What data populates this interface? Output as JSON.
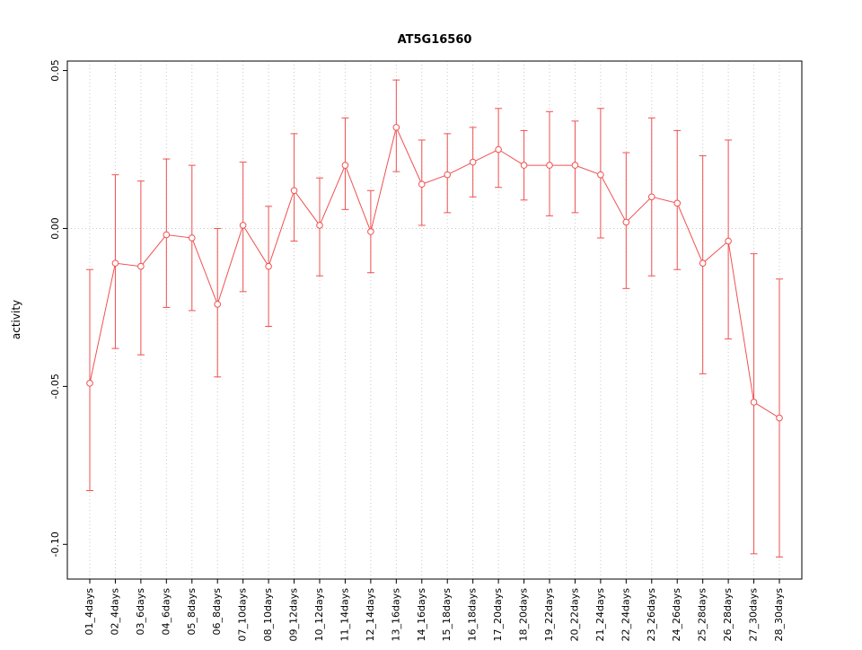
{
  "title": "AT5G16560",
  "chart_data": {
    "type": "line",
    "title": "AT5G16560",
    "xlabel": "",
    "ylabel": "activity",
    "categories": [
      "01_4days",
      "02_4days",
      "03_6days",
      "04_6days",
      "05_8days",
      "06_8days",
      "07_10days",
      "08_10days",
      "09_12days",
      "10_12days",
      "11_14days",
      "12_14days",
      "13_16days",
      "14_16days",
      "15_18days",
      "16_18days",
      "17_20days",
      "18_20days",
      "19_22days",
      "20_22days",
      "21_24days",
      "22_24days",
      "23_26days",
      "24_26days",
      "25_28days",
      "26_28days",
      "27_30days",
      "28_30days"
    ],
    "series": [
      {
        "name": "activity",
        "values": [
          -0.049,
          -0.011,
          -0.012,
          -0.002,
          -0.003,
          -0.024,
          0.001,
          -0.012,
          0.012,
          0.001,
          0.02,
          -0.001,
          0.032,
          0.014,
          0.017,
          0.021,
          0.025,
          0.02,
          0.02,
          0.02,
          0.017,
          0.002,
          0.01,
          0.008,
          -0.011,
          -0.004,
          -0.055,
          -0.06
        ],
        "err_low": [
          -0.083,
          -0.038,
          -0.04,
          -0.025,
          -0.026,
          -0.047,
          -0.02,
          -0.031,
          -0.004,
          -0.015,
          0.006,
          -0.014,
          0.018,
          0.001,
          0.005,
          0.01,
          0.013,
          0.009,
          0.004,
          0.005,
          -0.003,
          -0.019,
          -0.015,
          -0.013,
          -0.046,
          -0.035,
          -0.103,
          -0.104
        ],
        "err_high": [
          -0.013,
          0.017,
          0.015,
          0.022,
          0.02,
          0.0,
          0.021,
          0.007,
          0.03,
          0.016,
          0.035,
          0.012,
          0.047,
          0.028,
          0.03,
          0.032,
          0.038,
          0.031,
          0.037,
          0.034,
          0.038,
          0.024,
          0.035,
          0.031,
          0.023,
          0.028,
          -0.008,
          -0.016
        ]
      }
    ],
    "yticks": [
      0.05,
      0.0,
      -0.05,
      -0.1
    ],
    "ytick_labels": [
      "0.05",
      "0.00",
      "-0.05",
      "-0.10"
    ],
    "ylim": [
      -0.111,
      0.053
    ],
    "grid": "dotted vertical line at each category, dotted horizontal line at 0",
    "legend_position": "none",
    "colors": {
      "series": "#f05050",
      "grid": "#c8c8c8",
      "axis": "#000000",
      "background": "#ffffff"
    }
  }
}
